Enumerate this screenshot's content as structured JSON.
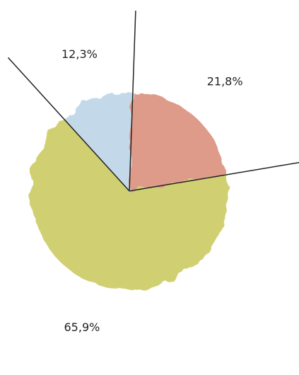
{
  "chart_data": {
    "type": "pie",
    "categories": [
      null,
      null,
      null
    ],
    "series": [
      {
        "name": null,
        "values": [
          21.8,
          65.9,
          12.3
        ],
        "value_labels": [
          "21,8%",
          "65,9%",
          "12,3%"
        ],
        "colors": [
          "#d98a76",
          "#c8c85a",
          "#b9d3e6"
        ]
      }
    ]
  }
}
